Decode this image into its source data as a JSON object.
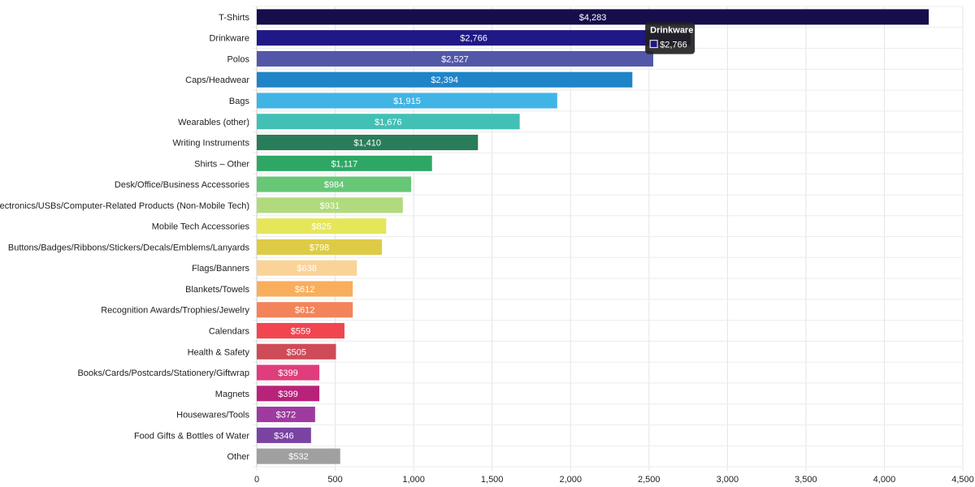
{
  "chart_data": {
    "type": "bar",
    "orientation": "horizontal",
    "categories": [
      "T-Shirts",
      "Drinkware",
      "Polos",
      "Caps/Headwear",
      "Bags",
      "Wearables (other)",
      "Writing Instruments",
      "Shirts – Other",
      "Desk/Office/Business Accessories",
      "Electronics/USBs/Computer-Related Products (Non-Mobile Tech)",
      "Mobile Tech Accessories",
      "Buttons/Badges/Ribbons/Stickers/Decals/Emblems/Lanyards",
      "Flags/Banners",
      "Blankets/Towels",
      "Recognition Awards/Trophies/Jewelry",
      "Calendars",
      "Health & Safety",
      "Books/Cards/Postcards/Stationery/Giftwrap",
      "Magnets",
      "Housewares/Tools",
      "Food Gifts & Bottles of Water",
      "Other"
    ],
    "values": [
      4283,
      2766,
      2527,
      2394,
      1915,
      1676,
      1410,
      1117,
      984,
      931,
      825,
      798,
      638,
      612,
      612,
      559,
      505,
      399,
      399,
      372,
      346,
      532
    ],
    "data_labels": [
      "$4,283",
      "$2,766",
      "$2,527",
      "$2,394",
      "$1,915",
      "$1,676",
      "$1,410",
      "$1,117",
      "$984",
      "$931",
      "$825",
      "$798",
      "$638",
      "$612",
      "$612",
      "$559",
      "$505",
      "$399",
      "$399",
      "$372",
      "$346",
      "$532"
    ],
    "colors": [
      "#150e4a",
      "#1f1885",
      "#5357a8",
      "#1f84c8",
      "#41b4e6",
      "#42c0b5",
      "#2a7d5a",
      "#2ea765",
      "#66c777",
      "#b1da7e",
      "#e6e65a",
      "#decb45",
      "#fad398",
      "#f9ae5c",
      "#f3845a",
      "#f14550",
      "#ce4b57",
      "#e03d7c",
      "#b8237a",
      "#9e3aa0",
      "#7a43a3",
      "#a0a0a0"
    ],
    "xlim": [
      0,
      4500
    ],
    "xticks": [
      0,
      500,
      1000,
      1500,
      2000,
      2500,
      3000,
      3500,
      4000,
      4500
    ],
    "xtick_labels": [
      "0",
      "500",
      "1,000",
      "1,500",
      "2,000",
      "2,500",
      "3,000",
      "3,500",
      "4,000",
      "4,500"
    ],
    "grid": true,
    "title": "",
    "xlabel": "",
    "ylabel": "",
    "tooltip": {
      "category_index": 1,
      "title": "Drinkware",
      "value": "$2,766",
      "swatch_color": "#1f1885",
      "background": "#222222"
    }
  }
}
